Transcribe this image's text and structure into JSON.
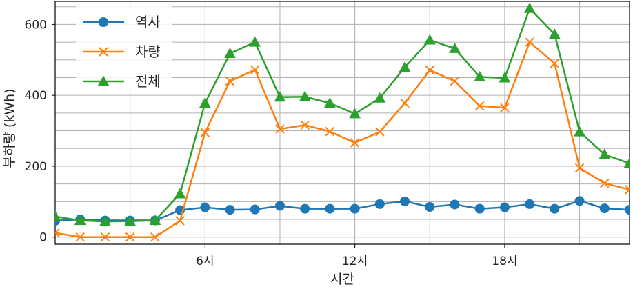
{
  "chart_data": {
    "type": "line",
    "xlabel": "시간",
    "ylabel": "부하량 (kWh)",
    "xlim": [
      0,
      23
    ],
    "ylim": [
      -20,
      665
    ],
    "grid": true,
    "legend_position": "top-left",
    "x": [
      0,
      1,
      2,
      3,
      4,
      5,
      6,
      7,
      8,
      9,
      10,
      11,
      12,
      13,
      14,
      15,
      16,
      17,
      18,
      19,
      20,
      21,
      22,
      23
    ],
    "x_ticks": [
      6,
      12,
      18
    ],
    "x_tick_labels": [
      "6시",
      "12시",
      "18시"
    ],
    "y_ticks": [
      0,
      200,
      400,
      600
    ],
    "y_tick_labels": [
      "0",
      "200",
      "400",
      "600"
    ],
    "series": [
      {
        "name": "역사",
        "color": "#1f77b4",
        "marker": "circle",
        "values": [
          46,
          50,
          47,
          47,
          47,
          76,
          84,
          77,
          78,
          88,
          80,
          80,
          80,
          93,
          101,
          85,
          92,
          80,
          84,
          93,
          80,
          102,
          81,
          77
        ]
      },
      {
        "name": "차량",
        "color": "#ff7f0e",
        "marker": "x",
        "values": [
          12,
          0,
          0,
          0,
          0,
          46,
          295,
          440,
          472,
          305,
          316,
          298,
          266,
          297,
          378,
          471,
          440,
          370,
          365,
          550,
          490,
          195,
          152,
          134
        ]
      },
      {
        "name": "전체",
        "color": "#2ca02c",
        "marker": "triangle",
        "values": [
          58,
          47,
          44,
          45,
          47,
          122,
          378,
          518,
          550,
          395,
          396,
          378,
          348,
          392,
          479,
          556,
          532,
          452,
          449,
          645,
          572,
          297,
          233,
          208
        ]
      }
    ]
  }
}
